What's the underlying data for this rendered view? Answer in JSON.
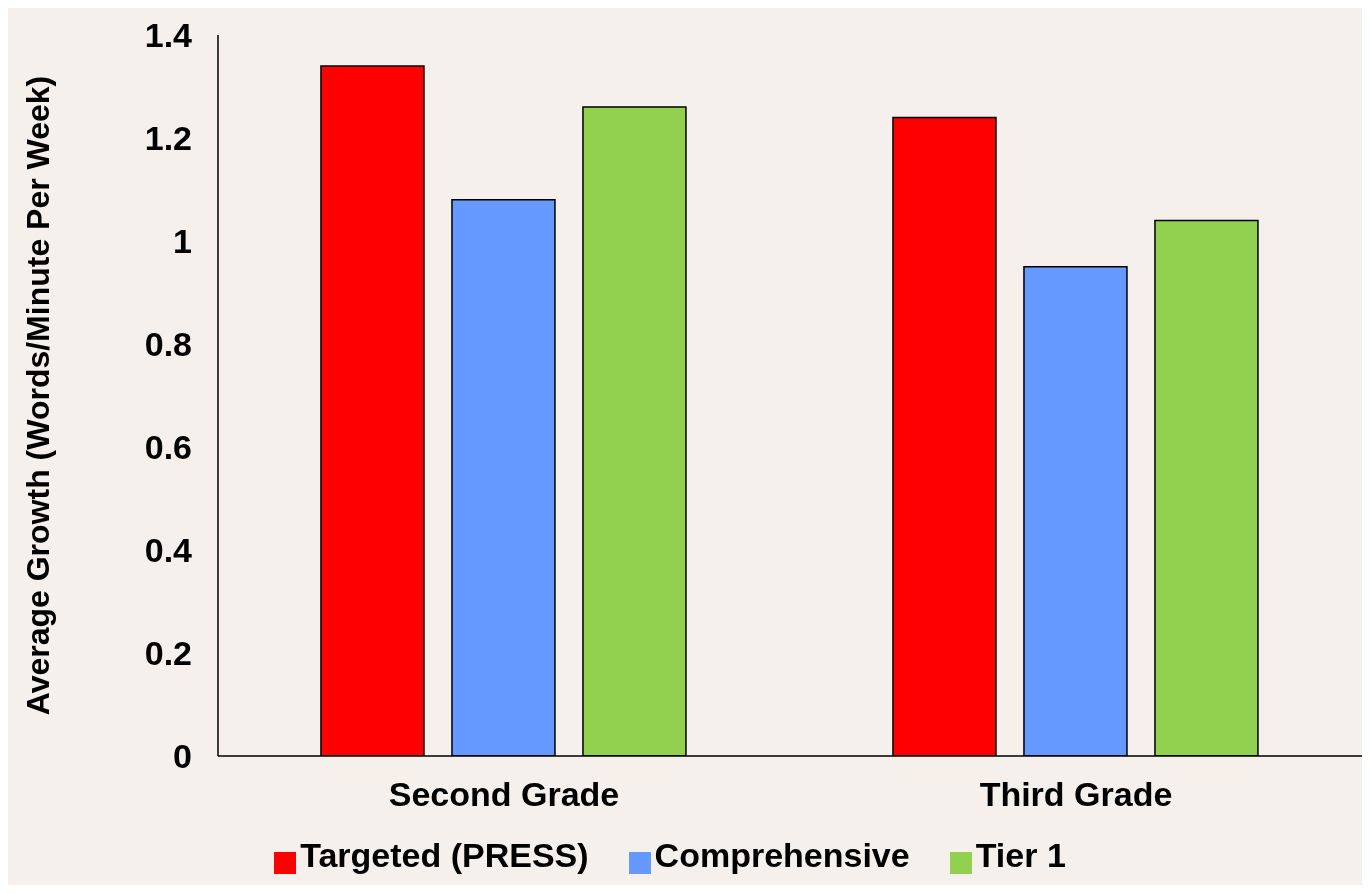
{
  "chart_data": {
    "type": "bar",
    "ylabel": "Average Growth (Words/Minute Per Week)",
    "categories": [
      "Second Grade",
      "Third Grade"
    ],
    "series": [
      {
        "name": "Targeted (PRESS)",
        "color": "#ff0000",
        "values": [
          1.34,
          1.24
        ]
      },
      {
        "name": "Comprehensive",
        "color": "#6699ff",
        "values": [
          1.08,
          0.95
        ]
      },
      {
        "name": "Tier 1",
        "color": "#92d050",
        "values": [
          1.26,
          1.04
        ]
      }
    ],
    "ylim": [
      0,
      1.4
    ],
    "yticks": [
      0,
      0.2,
      0.4,
      0.6,
      0.8,
      1,
      1.2,
      1.4
    ],
    "grid": false,
    "legend": "bottom"
  }
}
